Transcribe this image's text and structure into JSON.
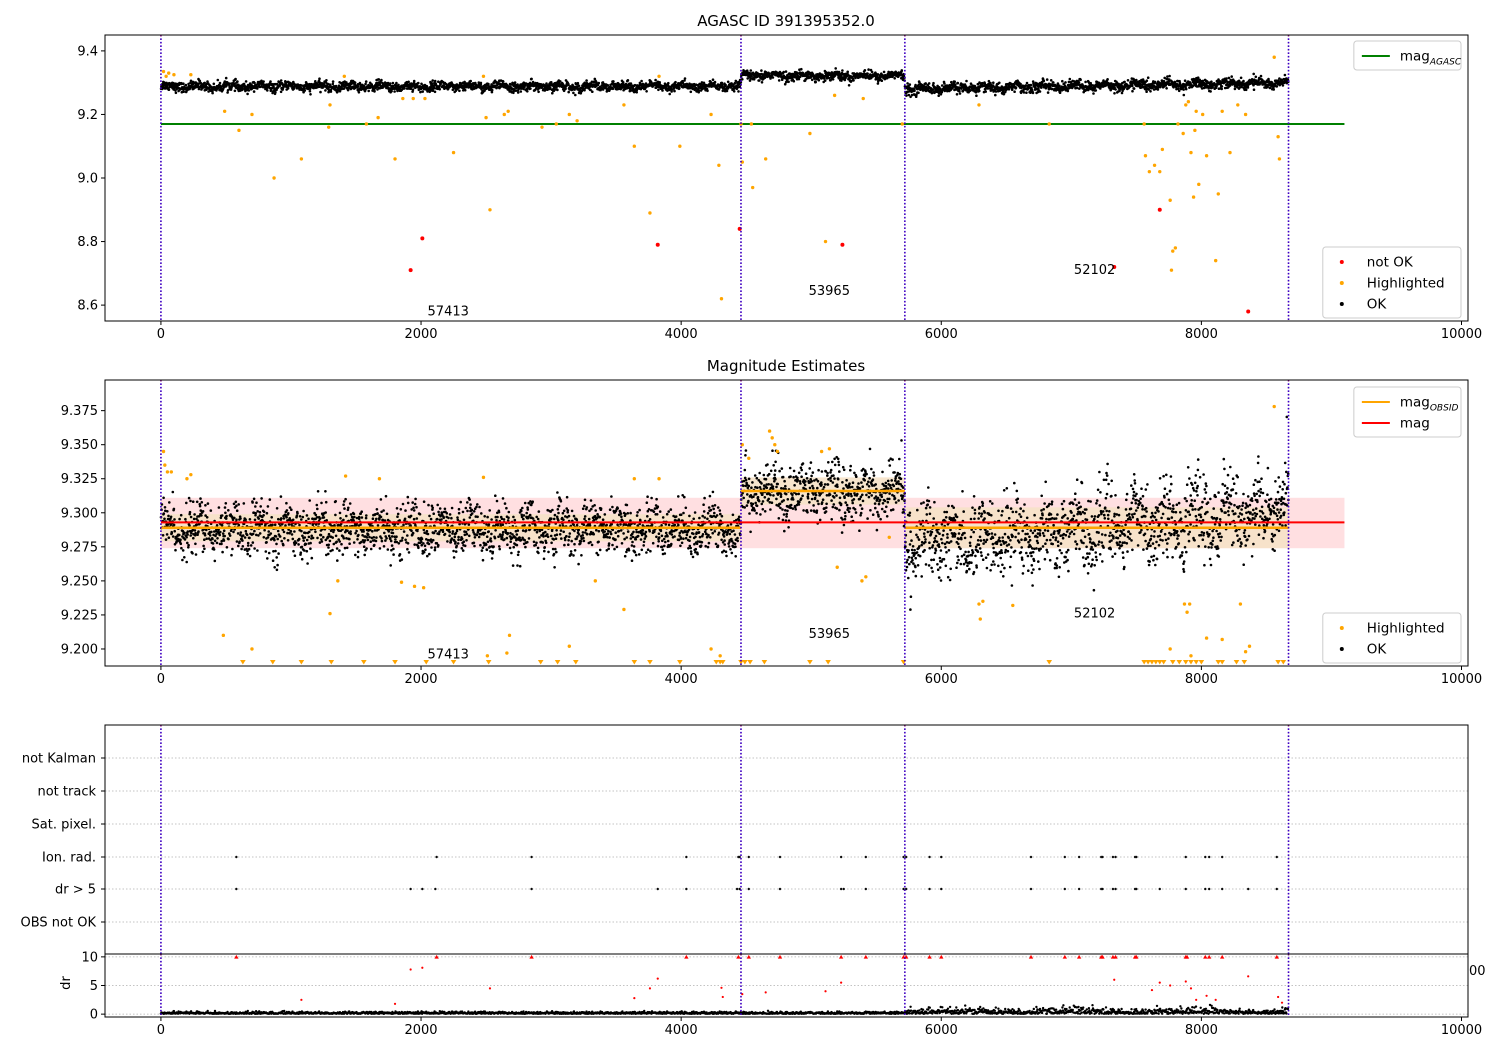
{
  "figure": {
    "background": "#ffffff"
  },
  "colors": {
    "ok": "#000000",
    "highlighted": "#ffa500",
    "not_ok": "#ff0000",
    "mag_agasc_line": "#008000",
    "mag_obsid_line": "#ffa500",
    "mag_line": "#ff0000",
    "band": "#ffd9dc",
    "obsid_boundary": "#800080",
    "boundary_dots": "#0000ff"
  },
  "chart_data": [
    {
      "id": "agasc",
      "type": "scatter",
      "title": "AGASC ID 391395352.0",
      "xlim": [
        -430,
        10050
      ],
      "ylim": [
        8.55,
        9.45
      ],
      "xticks": [
        0,
        2000,
        4000,
        6000,
        8000,
        10000
      ],
      "xtick_labels": [
        "0",
        "2000",
        "4000",
        "6000",
        "8000",
        "10000"
      ],
      "yticks": [
        8.6,
        8.8,
        9.0,
        9.2,
        9.4
      ],
      "ytick_labels": [
        "8.6",
        "8.8",
        "9.0",
        "9.2",
        "9.4"
      ],
      "obsid_boundaries": [
        0,
        4460,
        5720,
        8670
      ],
      "segments": [
        {
          "x0": 0,
          "x1": 4460,
          "level": 9.288,
          "trend": 0.0,
          "noise": 0.008
        },
        {
          "x0": 4460,
          "x1": 5720,
          "level": 9.322,
          "trend": 0.0,
          "noise": 0.008
        },
        {
          "x0": 5720,
          "x1": 8670,
          "level": 9.28,
          "trend": 0.02,
          "noise": 0.009
        }
      ],
      "hlines": [
        {
          "label": "mag_AGASC",
          "y": 9.17,
          "x0": 0,
          "x1": 9100,
          "color": "#008000"
        }
      ],
      "obsid_labels": [
        {
          "text": "57413",
          "x": 2050,
          "y": 8.58
        },
        {
          "text": "53965",
          "x": 4980,
          "y": 8.645
        },
        {
          "text": "52102",
          "x": 7020,
          "y": 8.71
        }
      ],
      "highlighted_points": [
        {
          "x": 20,
          "y": 9.335
        },
        {
          "x": 40,
          "y": 9.32
        },
        {
          "x": 60,
          "y": 9.33
        },
        {
          "x": 100,
          "y": 9.325
        },
        {
          "x": 230,
          "y": 9.325
        },
        {
          "x": 490,
          "y": 9.21
        },
        {
          "x": 600,
          "y": 9.15
        },
        {
          "x": 700,
          "y": 9.2
        },
        {
          "x": 870,
          "y": 9.0
        },
        {
          "x": 1080,
          "y": 9.06
        },
        {
          "x": 1290,
          "y": 9.16
        },
        {
          "x": 1300,
          "y": 9.23
        },
        {
          "x": 1410,
          "y": 9.32
        },
        {
          "x": 1580,
          "y": 9.17
        },
        {
          "x": 1670,
          "y": 9.19
        },
        {
          "x": 1800,
          "y": 9.06
        },
        {
          "x": 1860,
          "y": 9.25
        },
        {
          "x": 1940,
          "y": 9.25
        },
        {
          "x": 2030,
          "y": 9.25
        },
        {
          "x": 2250,
          "y": 9.08
        },
        {
          "x": 2480,
          "y": 9.32
        },
        {
          "x": 2530,
          "y": 8.9
        },
        {
          "x": 2500,
          "y": 9.19
        },
        {
          "x": 2640,
          "y": 9.2
        },
        {
          "x": 2670,
          "y": 9.21
        },
        {
          "x": 2930,
          "y": 9.16
        },
        {
          "x": 3040,
          "y": 9.17
        },
        {
          "x": 3140,
          "y": 9.2
        },
        {
          "x": 3200,
          "y": 9.18
        },
        {
          "x": 3560,
          "y": 9.23
        },
        {
          "x": 3640,
          "y": 9.1
        },
        {
          "x": 3760,
          "y": 8.89
        },
        {
          "x": 3830,
          "y": 9.32
        },
        {
          "x": 3990,
          "y": 9.1
        },
        {
          "x": 4230,
          "y": 9.2
        },
        {
          "x": 4290,
          "y": 9.04
        },
        {
          "x": 4310,
          "y": 8.62
        },
        {
          "x": 4460,
          "y": 9.17
        },
        {
          "x": 4470,
          "y": 9.05
        },
        {
          "x": 4540,
          "y": 9.17
        },
        {
          "x": 4550,
          "y": 8.97
        },
        {
          "x": 4650,
          "y": 9.06
        },
        {
          "x": 4990,
          "y": 9.14
        },
        {
          "x": 5110,
          "y": 8.8
        },
        {
          "x": 5180,
          "y": 9.26
        },
        {
          "x": 5400,
          "y": 9.25
        },
        {
          "x": 5700,
          "y": 9.17
        },
        {
          "x": 6290,
          "y": 9.23
        },
        {
          "x": 6830,
          "y": 9.17
        },
        {
          "x": 7560,
          "y": 9.17
        },
        {
          "x": 7570,
          "y": 9.07
        },
        {
          "x": 7600,
          "y": 9.02
        },
        {
          "x": 7640,
          "y": 9.04
        },
        {
          "x": 7680,
          "y": 9.02
        },
        {
          "x": 7700,
          "y": 9.09
        },
        {
          "x": 7760,
          "y": 8.93
        },
        {
          "x": 7770,
          "y": 8.71
        },
        {
          "x": 7780,
          "y": 8.77
        },
        {
          "x": 7800,
          "y": 8.78
        },
        {
          "x": 7820,
          "y": 9.17
        },
        {
          "x": 7860,
          "y": 9.14
        },
        {
          "x": 7880,
          "y": 9.23
        },
        {
          "x": 7900,
          "y": 9.24
        },
        {
          "x": 7920,
          "y": 9.08
        },
        {
          "x": 7940,
          "y": 8.94
        },
        {
          "x": 7950,
          "y": 9.15
        },
        {
          "x": 7960,
          "y": 9.21
        },
        {
          "x": 7980,
          "y": 8.98
        },
        {
          "x": 8010,
          "y": 9.2
        },
        {
          "x": 8040,
          "y": 9.07
        },
        {
          "x": 8110,
          "y": 8.74
        },
        {
          "x": 8160,
          "y": 9.21
        },
        {
          "x": 8220,
          "y": 9.08
        },
        {
          "x": 8280,
          "y": 9.23
        },
        {
          "x": 8340,
          "y": 9.2
        },
        {
          "x": 8560,
          "y": 9.38
        },
        {
          "x": 8590,
          "y": 9.13
        },
        {
          "x": 8600,
          "y": 9.06
        },
        {
          "x": 8130,
          "y": 8.95
        }
      ],
      "not_ok_points": [
        {
          "x": 1920,
          "y": 8.71
        },
        {
          "x": 2010,
          "y": 8.81
        },
        {
          "x": 3820,
          "y": 8.79
        },
        {
          "x": 4450,
          "y": 8.84
        },
        {
          "x": 5240,
          "y": 8.79
        },
        {
          "x": 7680,
          "y": 8.9
        },
        {
          "x": 7330,
          "y": 8.72
        },
        {
          "x": 8360,
          "y": 8.58
        }
      ],
      "legends": [
        {
          "position": "upper-right",
          "entries": [
            {
              "label": "mag",
              "sub": "AGASC",
              "kind": "line",
              "color": "#008000"
            }
          ]
        },
        {
          "position": "lower-right",
          "entries": [
            {
              "label": "not OK",
              "kind": "dot",
              "color": "#ff0000"
            },
            {
              "label": "Highlighted",
              "kind": "dot",
              "color": "#ffa500"
            },
            {
              "label": "OK",
              "kind": "dot",
              "color": "#000000"
            }
          ]
        }
      ]
    },
    {
      "id": "estimates",
      "type": "scatter",
      "title": "Magnitude Estimates",
      "xlim": [
        -430,
        10050
      ],
      "ylim": [
        9.1875,
        9.3975
      ],
      "xticks": [
        0,
        2000,
        4000,
        6000,
        8000,
        10000
      ],
      "xtick_labels": [
        "0",
        "2000",
        "4000",
        "6000",
        "8000",
        "10000"
      ],
      "yticks": [
        9.2,
        9.225,
        9.25,
        9.275,
        9.3,
        9.325,
        9.35,
        9.375
      ],
      "ytick_labels": [
        "9.200",
        "9.225",
        "9.250",
        "9.275",
        "9.300",
        "9.325",
        "9.350",
        "9.375"
      ],
      "obsid_boundaries": [
        0,
        4460,
        5720,
        8670
      ],
      "segments": [
        {
          "x0": 0,
          "x1": 4460,
          "level": 9.288,
          "trend": 0.0,
          "noise": 0.008,
          "mean": 9.289
        },
        {
          "x0": 4460,
          "x1": 5720,
          "level": 9.315,
          "trend": 0.0,
          "noise": 0.009,
          "mean": 9.316
        },
        {
          "x0": 5720,
          "x1": 8670,
          "level": 9.277,
          "trend": 0.025,
          "noise": 0.012,
          "mean": 9.289
        }
      ],
      "bands": [
        {
          "x0": 0,
          "x1": 9100,
          "y0": 9.274,
          "y1": 9.311,
          "color": "#ffd9dc"
        },
        {
          "x0": 0,
          "x1": 4460,
          "y0": 9.279,
          "y1": 9.299,
          "color": "#f6e2c8"
        },
        {
          "x0": 4460,
          "x1": 5720,
          "y0": 9.306,
          "y1": 9.326,
          "color": "#f6e2c8"
        },
        {
          "x0": 5720,
          "x1": 8670,
          "y0": 9.274,
          "y1": 9.304,
          "color": "#f6e2c8"
        }
      ],
      "hlines": [
        {
          "label": "mag",
          "y": 9.293,
          "x0": 0,
          "x1": 9100,
          "color": "#ff0000"
        }
      ],
      "obsid_labels": [
        {
          "text": "57413",
          "x": 2050,
          "y": 9.196
        },
        {
          "text": "53965",
          "x": 4980,
          "y": 9.211
        },
        {
          "text": "52102",
          "x": 7020,
          "y": 9.226
        }
      ],
      "highlighted_points": [
        {
          "x": 20,
          "y": 9.345
        },
        {
          "x": 30,
          "y": 9.335
        },
        {
          "x": 50,
          "y": 9.33
        },
        {
          "x": 80,
          "y": 9.33
        },
        {
          "x": 200,
          "y": 9.325
        },
        {
          "x": 230,
          "y": 9.328
        },
        {
          "x": 480,
          "y": 9.21
        },
        {
          "x": 700,
          "y": 9.2
        },
        {
          "x": 1300,
          "y": 9.226
        },
        {
          "x": 1360,
          "y": 9.25
        },
        {
          "x": 1420,
          "y": 9.327
        },
        {
          "x": 1680,
          "y": 9.325
        },
        {
          "x": 1850,
          "y": 9.249
        },
        {
          "x": 1950,
          "y": 9.246
        },
        {
          "x": 2020,
          "y": 9.245
        },
        {
          "x": 2480,
          "y": 9.326
        },
        {
          "x": 2510,
          "y": 9.195
        },
        {
          "x": 2660,
          "y": 9.197
        },
        {
          "x": 2680,
          "y": 9.21
        },
        {
          "x": 3140,
          "y": 9.202
        },
        {
          "x": 3340,
          "y": 9.25
        },
        {
          "x": 3560,
          "y": 9.229
        },
        {
          "x": 3640,
          "y": 9.325
        },
        {
          "x": 3830,
          "y": 9.325
        },
        {
          "x": 4230,
          "y": 9.2
        },
        {
          "x": 4300,
          "y": 9.195
        },
        {
          "x": 4470,
          "y": 9.35
        },
        {
          "x": 4520,
          "y": 9.34
        },
        {
          "x": 4680,
          "y": 9.36
        },
        {
          "x": 4700,
          "y": 9.355
        },
        {
          "x": 4720,
          "y": 9.35
        },
        {
          "x": 4740,
          "y": 9.345
        },
        {
          "x": 5080,
          "y": 9.345
        },
        {
          "x": 5140,
          "y": 9.347
        },
        {
          "x": 5200,
          "y": 9.26
        },
        {
          "x": 5390,
          "y": 9.25
        },
        {
          "x": 5420,
          "y": 9.253
        },
        {
          "x": 5600,
          "y": 9.282
        },
        {
          "x": 6290,
          "y": 9.233
        },
        {
          "x": 6300,
          "y": 9.222
        },
        {
          "x": 6320,
          "y": 9.235
        },
        {
          "x": 6550,
          "y": 9.232
        },
        {
          "x": 7760,
          "y": 9.2
        },
        {
          "x": 7870,
          "y": 9.233
        },
        {
          "x": 7890,
          "y": 9.227
        },
        {
          "x": 7910,
          "y": 9.233
        },
        {
          "x": 8040,
          "y": 9.208
        },
        {
          "x": 8160,
          "y": 9.207
        },
        {
          "x": 8300,
          "y": 9.233
        },
        {
          "x": 8340,
          "y": 9.198
        },
        {
          "x": 8370,
          "y": 9.202
        },
        {
          "x": 8560,
          "y": 9.378
        },
        {
          "x": 7920,
          "y": 9.195
        }
      ],
      "below_axis_markers_x": [
        630,
        860,
        1080,
        1310,
        1560,
        1800,
        2040,
        2250,
        2520,
        2920,
        3050,
        3190,
        3640,
        3760,
        3990,
        4270,
        4300,
        4320,
        4460,
        4490,
        4530,
        4640,
        4990,
        5130,
        5710,
        6830,
        7560,
        7590,
        7620,
        7650,
        7680,
        7710,
        7780,
        7830,
        7880,
        7920,
        7960,
        8000,
        8130,
        8160,
        8270,
        8330,
        8590,
        8630
      ],
      "legends": [
        {
          "position": "upper-right",
          "entries": [
            {
              "label": "mag",
              "sub": "OBSID",
              "kind": "line",
              "color": "#ffa500"
            },
            {
              "label": "mag",
              "kind": "line",
              "color": "#ff0000"
            }
          ]
        },
        {
          "position": "lower-right",
          "entries": [
            {
              "label": "Highlighted",
              "kind": "dot",
              "color": "#ffa500"
            },
            {
              "label": "OK",
              "kind": "dot",
              "color": "#000000"
            }
          ]
        }
      ]
    },
    {
      "id": "flags",
      "type": "scatter",
      "title": "",
      "xlim": [
        -430,
        10050
      ],
      "categories": [
        "not Kalman",
        "not track",
        "Sat. pixel.",
        "Ion. rad.",
        "dr > 5",
        "OBS not OK"
      ],
      "obsid_boundaries": [
        0,
        4460,
        5720,
        8670
      ],
      "flag_points": {
        "Ion. rad.": [
          580,
          2120,
          2850,
          4040,
          4440,
          4450,
          4520,
          4760,
          5230,
          5420,
          5710,
          5730,
          5910,
          6000,
          6690,
          6950,
          7060,
          7230,
          7240,
          7320,
          7340,
          7490,
          7500,
          7880,
          8030,
          8060,
          8160,
          8580
        ],
        "dr > 5": [
          580,
          1920,
          2010,
          2110,
          2850,
          3820,
          4040,
          4430,
          4450,
          4520,
          4760,
          5230,
          5250,
          5420,
          5710,
          5730,
          5910,
          6000,
          6690,
          6950,
          7060,
          7230,
          7240,
          7320,
          7340,
          7490,
          7500,
          7680,
          7880,
          8030,
          8060,
          8160,
          8360,
          8580
        ]
      },
      "right_edge_text": "00"
    },
    {
      "id": "dr",
      "type": "scatter",
      "title": "",
      "ylabel": "dr",
      "xlim": [
        -430,
        10050
      ],
      "ylim": [
        -0.5,
        10.5
      ],
      "yticks": [
        0,
        5,
        10
      ],
      "ytick_labels": [
        "0",
        "5",
        "10"
      ],
      "xticks": [
        0,
        2000,
        4000,
        6000,
        8000,
        10000
      ],
      "xtick_labels": [
        "0",
        "2000",
        "4000",
        "6000",
        "8000",
        "10000"
      ],
      "obsid_boundaries": [
        0,
        4460,
        5720,
        8670
      ],
      "dr_capped_x": [
        580,
        2120,
        2850,
        4040,
        4440,
        4520,
        4760,
        5230,
        5420,
        5710,
        5730,
        5910,
        6000,
        6690,
        6950,
        7060,
        7230,
        7240,
        7320,
        7340,
        7490,
        7500,
        7880,
        7890,
        8030,
        8060,
        8160,
        8580
      ],
      "dr_scatter_points": [
        {
          "x": 1920,
          "y": 7.8
        },
        {
          "x": 2010,
          "y": 8.1
        },
        {
          "x": 3820,
          "y": 6.2
        },
        {
          "x": 3760,
          "y": 4.5
        },
        {
          "x": 4310,
          "y": 4.6
        },
        {
          "x": 4320,
          "y": 3.0
        },
        {
          "x": 4470,
          "y": 3.5
        },
        {
          "x": 4650,
          "y": 3.8
        },
        {
          "x": 5110,
          "y": 4.0
        },
        {
          "x": 5230,
          "y": 5.5
        },
        {
          "x": 7330,
          "y": 6.0
        },
        {
          "x": 7620,
          "y": 4.2
        },
        {
          "x": 7680,
          "y": 5.5
        },
        {
          "x": 7760,
          "y": 5.0
        },
        {
          "x": 7880,
          "y": 5.7
        },
        {
          "x": 7920,
          "y": 4.5
        },
        {
          "x": 7960,
          "y": 2.5
        },
        {
          "x": 8040,
          "y": 3.2
        },
        {
          "x": 8110,
          "y": 2.5
        },
        {
          "x": 8360,
          "y": 6.6
        },
        {
          "x": 8590,
          "y": 3.0
        },
        {
          "x": 8620,
          "y": 2.0
        },
        {
          "x": 2530,
          "y": 4.5
        },
        {
          "x": 3640,
          "y": 2.8
        },
        {
          "x": 1080,
          "y": 2.5
        },
        {
          "x": 1800,
          "y": 1.8
        }
      ]
    }
  ]
}
